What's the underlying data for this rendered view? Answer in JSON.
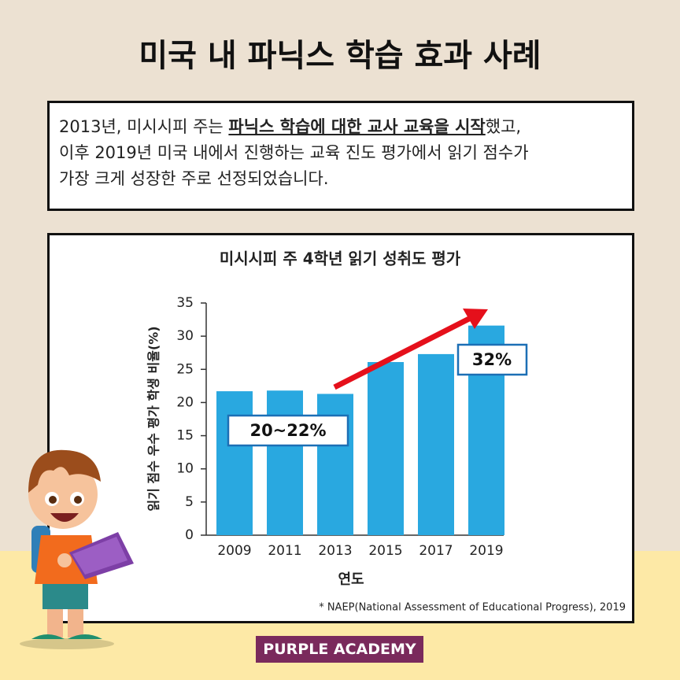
{
  "title": "미국 내 파닉스 학습 효과 사례",
  "intro": {
    "segments": [
      "2013년, 미시시피 주는 ",
      "파닉스 학습에 대한 교사 교육을 시작",
      "했고,",
      "이후 2019년 미국 내에서 진행하는 교육 진도 평가에서 읽기 점수가",
      "가장 크게 성장한 주로 선정되었습니다."
    ]
  },
  "chart_data": {
    "type": "bar",
    "title": "미시시피 주 4학년 읽기 성취도 평가",
    "categories": [
      "2009",
      "2011",
      "2013",
      "2015",
      "2017",
      "2019"
    ],
    "values": [
      21.7,
      21.8,
      21.3,
      26.1,
      27.3,
      31.6
    ],
    "color": "#29a8e0",
    "ylim": [
      0,
      35
    ],
    "yticks": [
      0,
      5,
      10,
      15,
      20,
      25,
      30,
      35
    ],
    "xlabel": "연도",
    "ylabel": "읽기 점수 우수 평가 학생 비율(%)",
    "annotations": [
      "20~22%",
      "32%"
    ],
    "source": "* NAEP(National Assessment of Educational Progress), 2019"
  },
  "footer": "PURPLE ACADEMY"
}
